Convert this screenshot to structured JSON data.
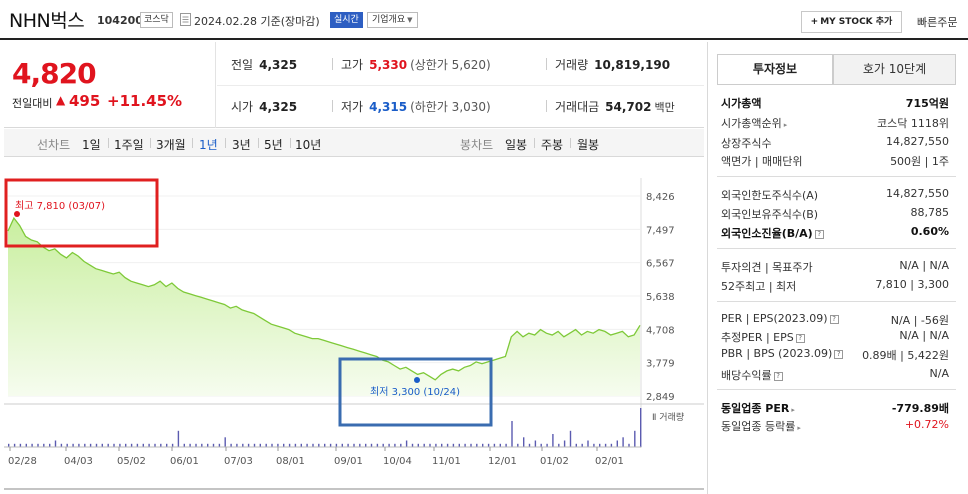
{
  "header": {
    "name": "NHN벅스",
    "code": "104200",
    "market": "코스닥",
    "as_of": "2024.02.28 기준(장마감)",
    "realtime": "실시간",
    "overview": "기업개요",
    "mystock_label": "MY STOCK 추가",
    "quick_order": "빠른주문"
  },
  "summary": {
    "price": "4,820",
    "change_label": "전일대비",
    "change": "495",
    "change_pct": "+11.45%",
    "prev_close_label": "전일",
    "prev_close": "4,325",
    "high_label": "고가",
    "high": "5,330",
    "upper_limit": "(상한가 5,620)",
    "volume_label": "거래량",
    "volume": "10,819,190",
    "open_label": "시가",
    "open": "4,325",
    "low_label": "저가",
    "low": "4,315",
    "lower_limit": "(하한가 3,030)",
    "value_label": "거래대금",
    "value": "54,702",
    "value_unit": "백만"
  },
  "period_bar": {
    "line_label": "선차트",
    "options": [
      "1일",
      "1주일",
      "3개월",
      "1년",
      "3년",
      "5년",
      "10년"
    ],
    "active": "1년",
    "candle_label": "봉차트",
    "candle_options": [
      "일봉",
      "주봉",
      "월봉"
    ]
  },
  "chart_data": {
    "type": "area",
    "y_ticks": [
      "8,426",
      "7,497",
      "6,567",
      "5,638",
      "4,708",
      "3,779",
      "2,849"
    ],
    "x_ticks": [
      "02/28",
      "04/03",
      "05/02",
      "06/01",
      "07/03",
      "08/01",
      "09/01",
      "10/04",
      "11/01",
      "12/01",
      "01/02",
      "02/01"
    ],
    "ylim": [
      2849,
      8426
    ],
    "high_label": "최고 7,810 (03/07)",
    "low_label": "최저 3,300 (10/24)",
    "volume_label": "거래량",
    "high_value": 7810,
    "low_value": 3300,
    "close_series": [
      7450,
      7810,
      7600,
      7300,
      7200,
      7150,
      7000,
      6900,
      6950,
      6800,
      6700,
      6850,
      6750,
      6600,
      6500,
      6400,
      6350,
      6300,
      6250,
      6300,
      6150,
      6050,
      6000,
      5950,
      5900,
      5950,
      6050,
      5900,
      6000,
      5850,
      5750,
      5700,
      5650,
      5600,
      5550,
      5500,
      5450,
      5400,
      5300,
      5350,
      5250,
      5200,
      5150,
      5050,
      4950,
      4850,
      4800,
      4750,
      4700,
      4600,
      4550,
      4500,
      4450,
      4450,
      4400,
      4350,
      4300,
      4250,
      4200,
      4150,
      4100,
      4050,
      4000,
      3950,
      3850,
      3800,
      3700,
      3600,
      3650,
      3550,
      3450,
      3500,
      3400,
      3300,
      3450,
      3550,
      3600,
      3550,
      3650,
      3700,
      3800,
      3750,
      3800,
      3850,
      3900,
      3950,
      4500,
      4650,
      4500,
      4600,
      4550,
      4700,
      4600,
      4550,
      4650,
      4500,
      4600,
      4700,
      4550,
      4650,
      4600,
      4700,
      4650,
      4550,
      4600,
      4650,
      4500,
      4550,
      4820
    ],
    "volume_series": [
      1,
      1,
      1,
      1,
      1,
      1,
      1,
      1,
      2,
      1,
      1,
      1,
      1,
      1,
      1,
      1,
      1,
      1,
      1,
      1,
      1,
      1,
      1,
      1,
      1,
      1,
      1,
      1,
      1,
      5,
      1,
      1,
      1,
      1,
      1,
      1,
      1,
      3,
      1,
      1,
      1,
      1,
      1,
      1,
      1,
      1,
      1,
      1,
      1,
      1,
      1,
      1,
      1,
      1,
      1,
      1,
      1,
      1,
      1,
      1,
      1,
      1,
      1,
      1,
      1,
      1,
      1,
      1,
      2,
      1,
      1,
      1,
      1,
      1,
      1,
      1,
      1,
      1,
      1,
      1,
      1,
      1,
      1,
      1,
      1,
      1,
      8,
      1,
      3,
      1,
      2,
      1,
      1,
      4,
      1,
      2,
      5,
      1,
      1,
      2,
      1,
      1,
      1,
      1,
      2,
      3,
      1,
      5,
      12
    ]
  },
  "right_panel": {
    "tab_active": "투자정보",
    "tab_inactive": "호가 10단계",
    "rows": [
      {
        "label": "시가총액",
        "value": "715억원",
        "bold": true
      },
      {
        "label": "시가총액순위",
        "value": "코스닥 1118위"
      },
      {
        "label": "상장주식수",
        "value": "14,827,550"
      },
      {
        "label": "액면가 | 매매단위",
        "value": "500원 | 1주"
      },
      {
        "label": "외국인한도주식수(A)",
        "value": "14,827,550"
      },
      {
        "label": "외국인보유주식수(B)",
        "value": "88,785"
      },
      {
        "label": "외국인소진율(B/A)",
        "value": "0.60%",
        "bold": true
      },
      {
        "label": "투자의견 | 목표주가",
        "value": "N/A | N/A"
      },
      {
        "label": "52주최고 | 최저",
        "value": "7,810 | 3,300"
      },
      {
        "label": "PER | EPS(2023.09)",
        "value": "N/A | -56원"
      },
      {
        "label": "추정PER | EPS",
        "value": "N/A | N/A"
      },
      {
        "label": "PBR | BPS (2023.09)",
        "value": "0.89배 | 5,422원"
      },
      {
        "label": "배당수익률",
        "value": "N/A"
      },
      {
        "label": "동일업종 PER",
        "value": "-779.89배",
        "bold": true
      },
      {
        "label": "동일업종 등락률",
        "value": "+0.72%"
      }
    ]
  },
  "colors": {
    "up": "#e0141e",
    "down": "#1a5dc8",
    "chart_line": "#7ec938",
    "chart_fill": "#e3f5cf",
    "volume_bar": "#5b5bb0",
    "high_box": "#e02020",
    "low_box": "#3a6cb0"
  }
}
